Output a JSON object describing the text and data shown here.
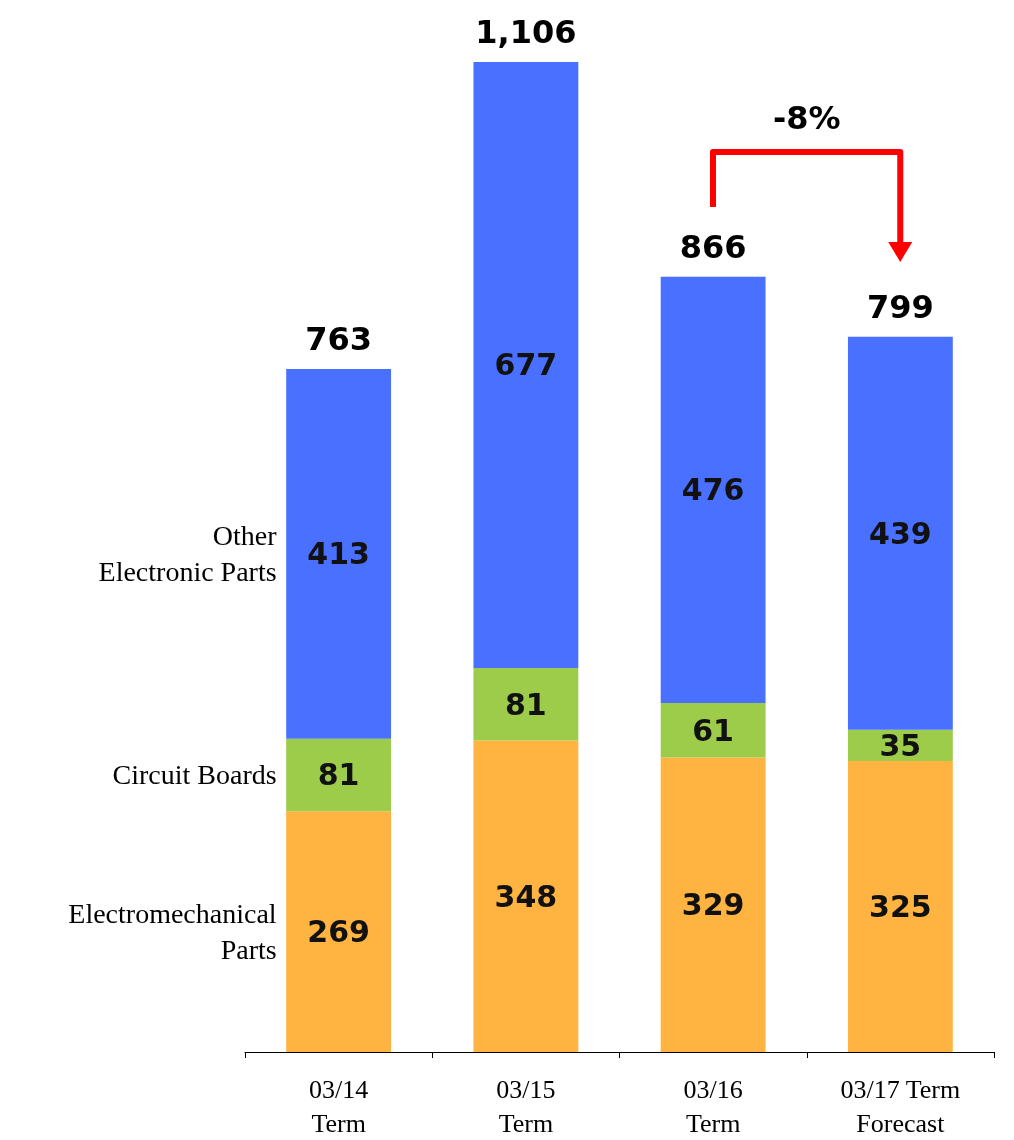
{
  "chart_data": {
    "type": "bar",
    "stacked": true,
    "data_labels": true,
    "categories": [
      "03/14\nTerm",
      "03/15\nTerm",
      "03/16\nTerm",
      "03/17 Term\nForecast"
    ],
    "series": [
      {
        "name": "Electromechanical\nParts",
        "color": "#ffb340",
        "values": [
          269,
          348,
          329,
          325
        ]
      },
      {
        "name": "Circuit Boards",
        "color": "#9ccc4a",
        "values": [
          81,
          81,
          61,
          35
        ]
      },
      {
        "name": "Other\nElectronic Parts",
        "color": "#4a70ff",
        "values": [
          413,
          677,
          476,
          439
        ]
      }
    ],
    "totals": [
      "763",
      "1,106",
      "866",
      "799"
    ],
    "annotations": [
      "-8%"
    ]
  }
}
